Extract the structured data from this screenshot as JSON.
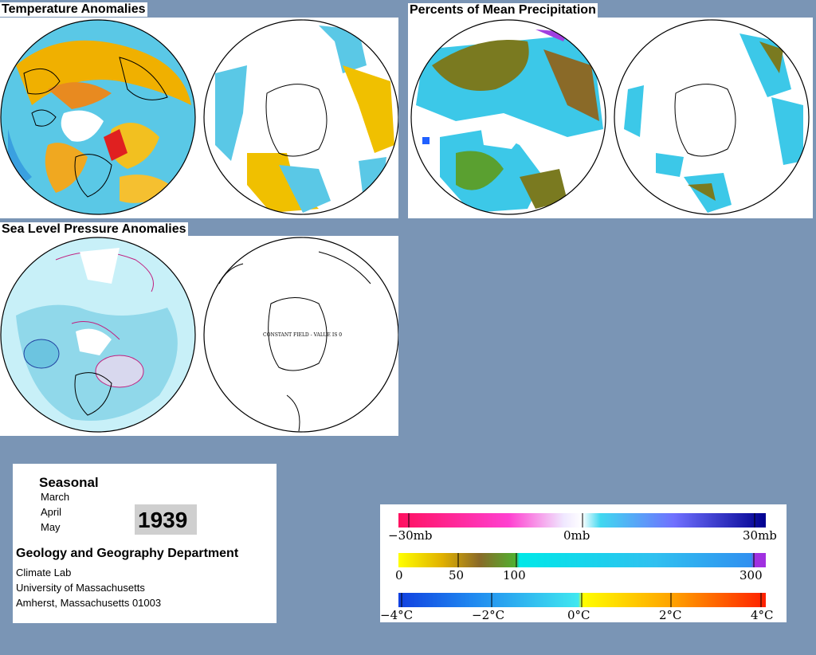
{
  "panels": {
    "temperature": {
      "title": "Temperature Anomalies"
    },
    "precipitation": {
      "title": "Percents of Mean Precipitation"
    },
    "pressure": {
      "title": "Sea Level Pressure Anomalies",
      "south_note": "CONSTANT FIELD - VALUE IS 0"
    }
  },
  "info": {
    "period": "Seasonal",
    "months": [
      "March",
      "April",
      "May"
    ],
    "year": "1939",
    "department": "Geology and Geography Department",
    "lab": "Climate Lab",
    "university": "University of Massachusetts",
    "address": "Amherst, Massachusetts 01003"
  },
  "legend": {
    "pressure": {
      "labels": [
        "−30mb",
        "0mb",
        "30mb"
      ]
    },
    "precip": {
      "labels": [
        "0",
        "50",
        "100",
        "300"
      ]
    },
    "temp": {
      "labels": [
        "−4°C",
        "−2°C",
        "0°C",
        "2°C",
        "4°C"
      ]
    }
  },
  "colors": {
    "background": "#7a95b5",
    "warm": "#f5b400",
    "cool": "#38c8e8",
    "precip_low": "#7a7a20",
    "precip_high": "#3cc8e8"
  }
}
